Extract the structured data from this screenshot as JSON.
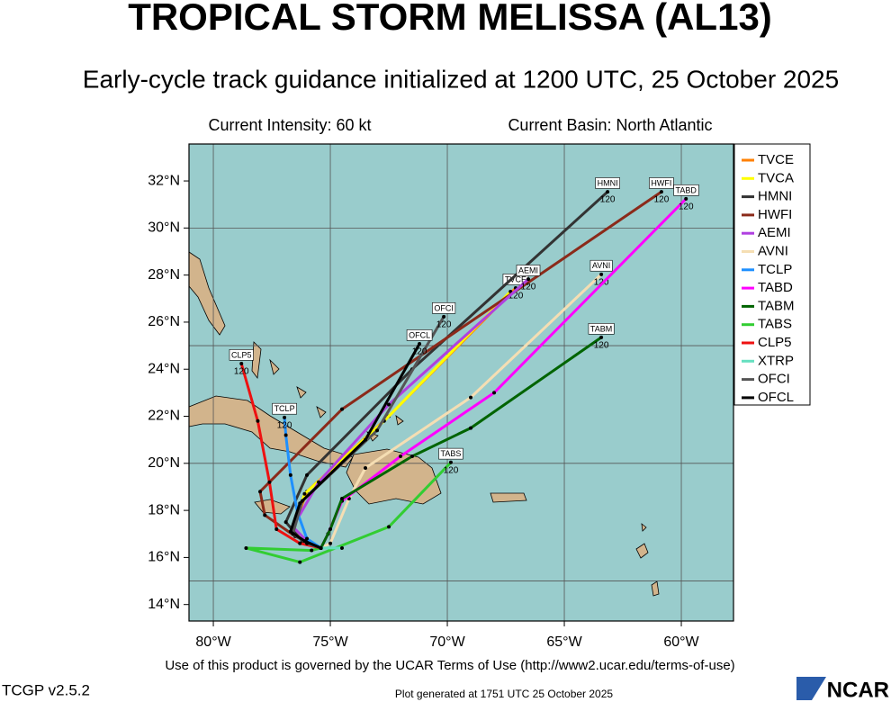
{
  "chart_data": {
    "type": "track-map",
    "title": "TROPICAL STORM MELISSA (AL13)",
    "subtitle": "Early-cycle track guidance initialized at 1200 UTC, 25 October 2025",
    "info_left": "Current Intensity: 60 kt",
    "info_right": "Current Basin: North Atlantic",
    "footer": "Use of this product is governed by the UCAR Terms of Use (http://www2.ucar.edu/terms-of-use)",
    "version": "TCGP v2.5.2",
    "generated": "Plot generated at 1751 UTC  25 October 2025",
    "logo": "NCAR",
    "xlim": [
      -81.04,
      -57.77
    ],
    "ylim": [
      13.3,
      33.57
    ],
    "xticks": [
      {
        "value": -80,
        "label": "80°W"
      },
      {
        "value": -75,
        "label": "75°W"
      },
      {
        "value": -70,
        "label": "70°W"
      },
      {
        "value": -65,
        "label": "65°W"
      },
      {
        "value": -60,
        "label": "60°W"
      }
    ],
    "yticks": [
      {
        "value": 14,
        "label": "14°N"
      },
      {
        "value": 16,
        "label": "16°N"
      },
      {
        "value": 18,
        "label": "18°N"
      },
      {
        "value": 20,
        "label": "20°N"
      },
      {
        "value": 22,
        "label": "22°N"
      },
      {
        "value": 24,
        "label": "24°N"
      },
      {
        "value": 26,
        "label": "26°N"
      },
      {
        "value": 28,
        "label": "28°N"
      },
      {
        "value": 30,
        "label": "30°N"
      },
      {
        "value": 32,
        "label": "32°N"
      }
    ],
    "ygrid": [
      15,
      20,
      25,
      30
    ],
    "end_label": "120",
    "series": [
      {
        "name": "TVCE",
        "color": "#ff8000",
        "boxed": true,
        "lon": [
          -75.4,
          -76.0,
          -76.6,
          -76.0,
          -72.5,
          -67.08
        ],
        "lat": [
          16.4,
          16.6,
          17.2,
          18.8,
          22.0,
          27.45
        ]
      },
      {
        "name": "TVCA",
        "color": "#ffff00",
        "boxed": false,
        "lon": [
          -75.4,
          -76.0,
          -76.6,
          -76.1,
          -72.7,
          -67.3
        ],
        "lat": [
          16.4,
          16.6,
          17.2,
          18.7,
          21.8,
          27.3
        ]
      },
      {
        "name": "HMNI",
        "color": "#333333",
        "boxed": true,
        "lon": [
          -75.4,
          -76.2,
          -76.9,
          -76.0,
          -71.5,
          -63.15
        ],
        "lat": [
          16.4,
          16.7,
          17.5,
          19.5,
          24.0,
          31.54
        ]
      },
      {
        "name": "HWFI",
        "color": "#8b2a1a",
        "boxed": true,
        "lon": [
          -75.4,
          -76.5,
          -77.8,
          -78.0,
          -74.5,
          -60.85
        ],
        "lat": [
          16.4,
          16.9,
          17.8,
          18.8,
          22.3,
          31.54
        ]
      },
      {
        "name": "AEMI",
        "color": "#b040e0",
        "boxed": true,
        "lon": [
          -75.4,
          -76.0,
          -76.6,
          -75.5,
          -72.5,
          -66.54
        ],
        "lat": [
          16.4,
          16.7,
          17.3,
          19.2,
          22.5,
          27.83
        ]
      },
      {
        "name": "AVNI",
        "color": "#f5deb3",
        "boxed": true,
        "lon": [
          -75.4,
          -75.0,
          -74.2,
          -73.5,
          -69.0,
          -63.42
        ],
        "lat": [
          16.4,
          16.6,
          18.5,
          19.8,
          22.8,
          28.03
        ]
      },
      {
        "name": "TCLP",
        "color": "#1e90ff",
        "boxed": true,
        "lon": [
          -75.4,
          -76.0,
          -76.4,
          -76.7,
          -76.9,
          -76.96
        ],
        "lat": [
          16.4,
          16.8,
          17.9,
          19.5,
          21.2,
          21.95
        ]
      },
      {
        "name": "TABD",
        "color": "#ff00ff",
        "boxed": true,
        "lon": [
          -75.4,
          -75.1,
          -74.5,
          -72.0,
          -68.0,
          -59.8
        ],
        "lat": [
          16.4,
          17.0,
          18.4,
          20.3,
          23.0,
          31.24
        ]
      },
      {
        "name": "TABM",
        "color": "#006400",
        "boxed": true,
        "lon": [
          -75.4,
          -75.0,
          -74.5,
          -71.5,
          -69.0,
          -63.42
        ],
        "lat": [
          16.4,
          17.2,
          18.5,
          20.3,
          21.5,
          25.35
        ]
      },
      {
        "name": "TABS",
        "color": "#32cd32",
        "boxed": true,
        "lon": [
          -75.4,
          -75.8,
          -78.6,
          -76.3,
          -72.5,
          -69.85
        ],
        "lat": [
          16.4,
          16.3,
          16.4,
          15.8,
          17.3,
          20.04
        ]
      },
      {
        "name": "CLP5",
        "color": "#ee1111",
        "boxed": true,
        "lon": [
          -75.4,
          -76.3,
          -77.3,
          -77.6,
          -78.1,
          -78.8
        ],
        "lat": [
          16.4,
          16.6,
          17.2,
          19.2,
          21.8,
          24.24
        ]
      },
      {
        "name": "XTRP",
        "color": "#66e0c0",
        "boxed": false,
        "lon": [
          -75.4,
          -74.5
        ],
        "lat": [
          16.4,
          16.4
        ]
      },
      {
        "name": "OFCI",
        "color": "#555555",
        "boxed": true,
        "lon": [
          -75.4,
          -76.0,
          -76.6,
          -76.2,
          -73.0,
          -70.15
        ],
        "lat": [
          16.4,
          16.6,
          17.0,
          18.4,
          21.4,
          26.23
        ]
      },
      {
        "name": "OFCL",
        "color": "#000000",
        "boxed": true,
        "lon": [
          -75.4,
          -76.1,
          -76.7,
          -76.3,
          -73.5,
          -71.19
        ],
        "lat": [
          16.4,
          16.7,
          17.1,
          18.3,
          21.0,
          25.08
        ]
      }
    ]
  }
}
